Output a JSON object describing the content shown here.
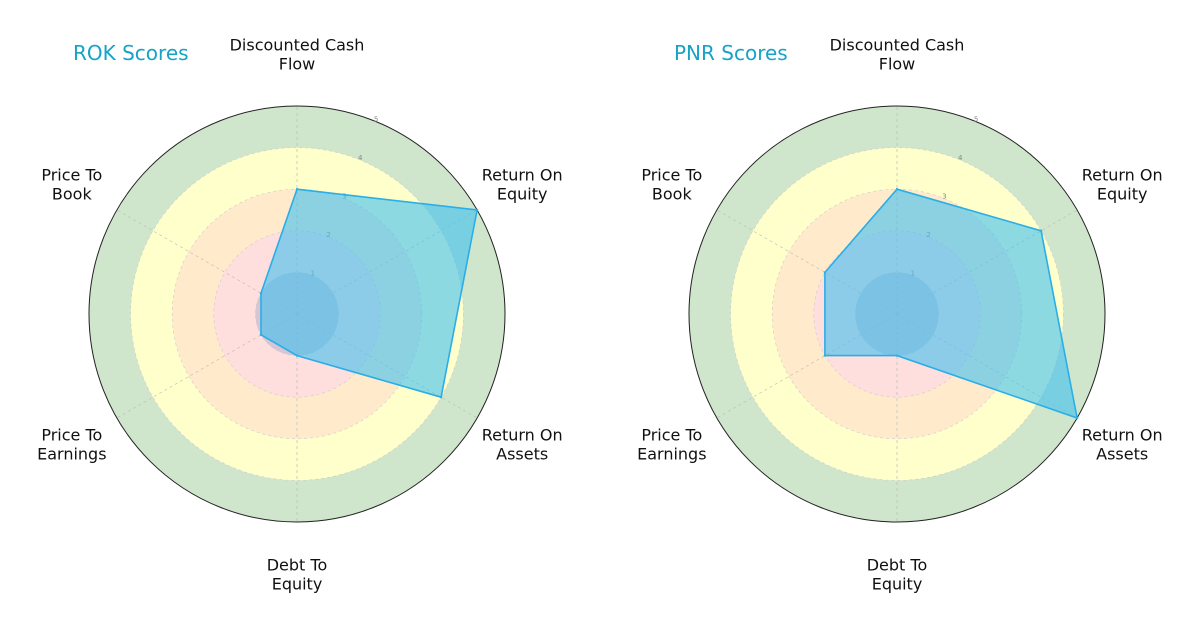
{
  "chart_data": [
    {
      "type": "radar",
      "title": "ROK Scores",
      "axes": [
        "Discounted Cash Flow",
        "Return On Equity",
        "Return On Assets",
        "Debt To Equity",
        "Price To Earnings",
        "Price To Book"
      ],
      "axis_labels": [
        [
          "Discounted Cash",
          "Flow"
        ],
        [
          "Return On",
          "Equity"
        ],
        [
          "Return On",
          "Assets"
        ],
        [
          "Debt To",
          "Equity"
        ],
        [
          "Price To",
          "Earnings"
        ],
        [
          "Price To",
          "Book"
        ]
      ],
      "rlim": [
        0,
        5
      ],
      "rticks": [
        "1",
        "2",
        "3",
        "4",
        "5"
      ],
      "values": [
        3,
        5,
        4,
        1,
        1,
        1
      ],
      "bands": [
        {
          "range": [
            0,
            1
          ],
          "color": "#a7a7c8"
        },
        {
          "range": [
            1,
            2
          ],
          "color": "#ffdede"
        },
        {
          "range": [
            2,
            3
          ],
          "color": "#ffeacc"
        },
        {
          "range": [
            3,
            4
          ],
          "color": "#ffffcc"
        },
        {
          "range": [
            4,
            5
          ],
          "color": "#cfe6cc"
        }
      ],
      "fill_color": "#3fc0f0",
      "line_color": "#2aaee8"
    },
    {
      "type": "radar",
      "title": "PNR Scores",
      "axes": [
        "Discounted Cash Flow",
        "Return On Equity",
        "Return On Assets",
        "Debt To Equity",
        "Price To Earnings",
        "Price To Book"
      ],
      "axis_labels": [
        [
          "Discounted Cash",
          "Flow"
        ],
        [
          "Return On",
          "Equity"
        ],
        [
          "Return On",
          "Assets"
        ],
        [
          "Debt To",
          "Equity"
        ],
        [
          "Price To",
          "Earnings"
        ],
        [
          "Price To",
          "Book"
        ]
      ],
      "rlim": [
        0,
        5
      ],
      "rticks": [
        "1",
        "2",
        "3",
        "4",
        "5"
      ],
      "values": [
        3,
        4,
        5,
        1,
        2,
        2
      ],
      "bands": [
        {
          "range": [
            0,
            1
          ],
          "color": "#a7a7c8"
        },
        {
          "range": [
            1,
            2
          ],
          "color": "#ffdede"
        },
        {
          "range": [
            2,
            3
          ],
          "color": "#ffeacc"
        },
        {
          "range": [
            3,
            4
          ],
          "color": "#ffffcc"
        },
        {
          "range": [
            4,
            5
          ],
          "color": "#cfe6cc"
        }
      ],
      "fill_color": "#3fc0f0",
      "line_color": "#2aaee8"
    }
  ]
}
